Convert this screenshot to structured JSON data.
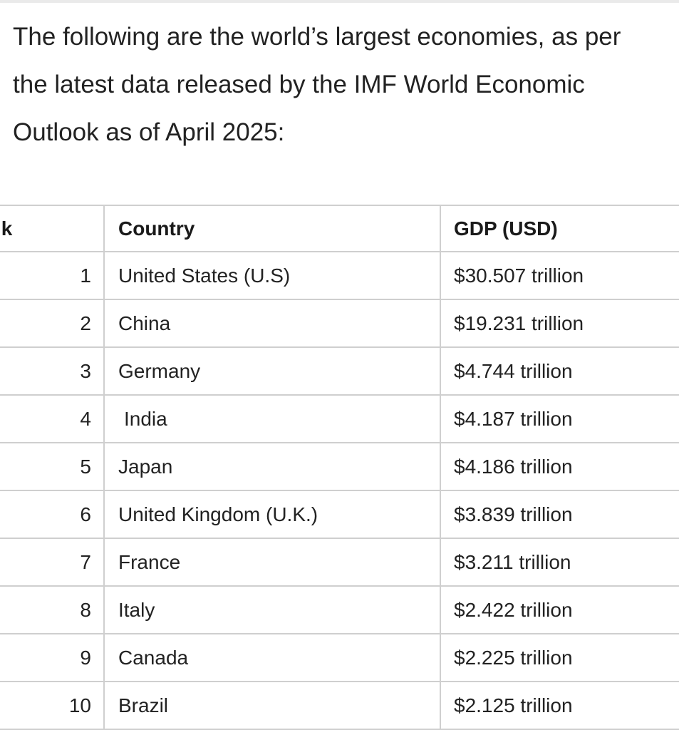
{
  "intro": {
    "lines": [
      "The following are the world’s largest economies, as per",
      "the latest data released by the IMF World Economic",
      "Outlook as of April 2025:"
    ]
  },
  "table": {
    "headers": {
      "rank": "ık",
      "country": "Country",
      "gdp": "GDP (USD)"
    },
    "rows": [
      {
        "rank": "1",
        "country": "United States (U.S)",
        "gdp": "$30.507 trillion"
      },
      {
        "rank": "2",
        "country": "China",
        "gdp": "$19.231 trillion"
      },
      {
        "rank": "3",
        "country": "Germany",
        "gdp": "$4.744 trillion"
      },
      {
        "rank": "4",
        "country": "India",
        "gdp": "$4.187 trillion"
      },
      {
        "rank": "5",
        "country": "Japan",
        "gdp": "$4.186 trillion"
      },
      {
        "rank": "6",
        "country": "United Kingdom (U.K.)",
        "gdp": "$3.839 trillion"
      },
      {
        "rank": "7",
        "country": "France",
        "gdp": "$3.211 trillion"
      },
      {
        "rank": "8",
        "country": "Italy",
        "gdp": "$2.422 trillion"
      },
      {
        "rank": "9",
        "country": "Canada",
        "gdp": "$2.225 trillion"
      },
      {
        "rank": "10",
        "country": "Brazil",
        "gdp": "$2.125 trillion"
      }
    ]
  }
}
